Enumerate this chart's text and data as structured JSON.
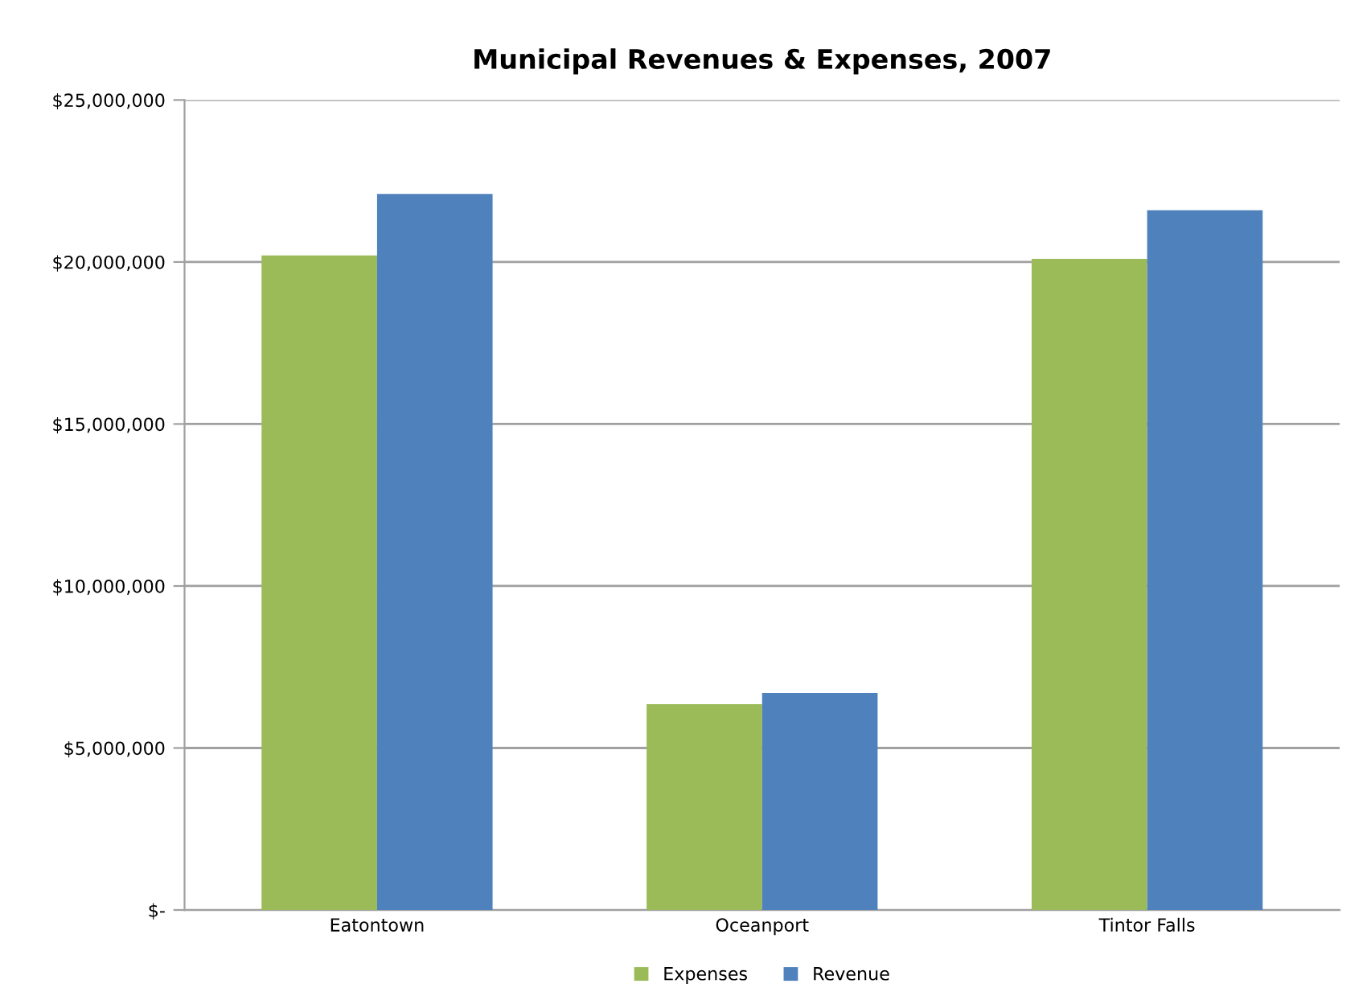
{
  "chart_data": {
    "type": "bar",
    "title": "Municipal Revenues & Expenses, 2007",
    "categories": [
      "Eatontown",
      "Oceanport",
      "Tintor Falls"
    ],
    "series": [
      {
        "name": "Expenses",
        "color": "#9bbb59",
        "values": [
          20200000,
          6350000,
          20100000
        ]
      },
      {
        "name": "Revenue",
        "color": "#4f81bd",
        "values": [
          22100000,
          6700000,
          21600000
        ]
      }
    ],
    "ylim": [
      0,
      25000000
    ],
    "yticks": [
      {
        "value": 0,
        "label": "$-"
      },
      {
        "value": 5000000,
        "label": "$5,000,000"
      },
      {
        "value": 10000000,
        "label": "$10,000,000"
      },
      {
        "value": 15000000,
        "label": "$15,000,000"
      },
      {
        "value": 20000000,
        "label": "$20,000,000"
      },
      {
        "value": 25000000,
        "label": "$25,000,000"
      }
    ],
    "grid": "y",
    "legend": "bottom"
  }
}
